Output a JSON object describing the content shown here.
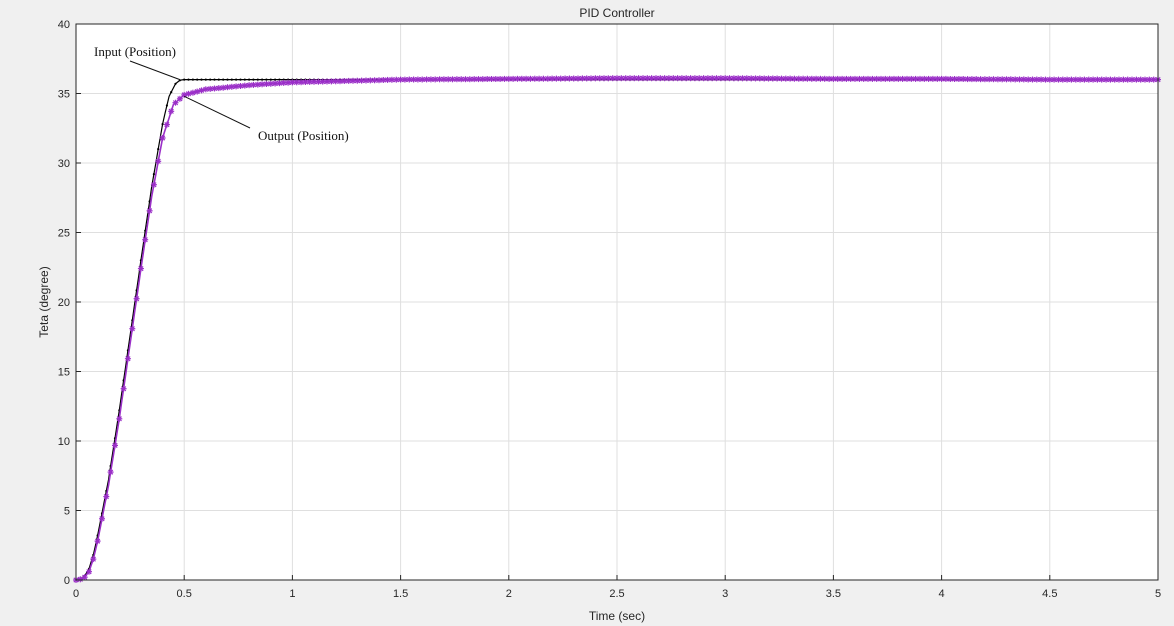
{
  "chart_data": {
    "type": "line",
    "title": "PID  Controller",
    "xlabel": "Time (sec)",
    "ylabel": "Teta (degree)",
    "xlim": [
      0,
      5
    ],
    "ylim": [
      0,
      40
    ],
    "xticks": [
      0,
      0.5,
      1,
      1.5,
      2,
      2.5,
      3,
      3.5,
      4,
      4.5,
      5
    ],
    "xtick_labels": [
      "0",
      "0.5",
      "1",
      "1.5",
      "2",
      "2.5",
      "3",
      "3.5",
      "4",
      "4.5",
      "5"
    ],
    "yticks": [
      0,
      5,
      10,
      15,
      20,
      25,
      30,
      35,
      40
    ],
    "ytick_labels": [
      "0",
      "5",
      "10",
      "15",
      "20",
      "25",
      "30",
      "35",
      "40"
    ],
    "grid": true,
    "annotations": [
      {
        "text": "Input (Position)",
        "points_to": [
          0.48,
          36.0
        ]
      },
      {
        "text": "Output (Position)",
        "points_to": [
          0.5,
          34.8
        ]
      }
    ],
    "series": [
      {
        "name": "Input (Position)",
        "color": "#000000",
        "marker": "dot",
        "x": [
          0,
          0.02,
          0.04,
          0.06,
          0.08,
          0.1,
          0.12,
          0.15,
          0.2,
          0.25,
          0.3,
          0.35,
          0.4,
          0.43,
          0.46,
          0.48,
          0.5,
          0.55,
          0.6,
          0.8,
          1.0,
          1.5,
          2.0,
          2.5,
          3.0,
          3.5,
          4.0,
          4.5,
          5.0
        ],
        "values": [
          0,
          0.1,
          0.3,
          0.8,
          1.8,
          3.2,
          4.8,
          7.2,
          12.2,
          17.6,
          23.0,
          28.3,
          32.8,
          34.8,
          35.7,
          35.95,
          36.0,
          36.0,
          36.0,
          36.0,
          36.0,
          36.0,
          36.0,
          36.0,
          36.0,
          36.0,
          36.0,
          36.0,
          36.0
        ]
      },
      {
        "name": "Output (Position)",
        "color": "#9b30c8",
        "marker": "star",
        "x": [
          0,
          0.02,
          0.04,
          0.06,
          0.08,
          0.1,
          0.12,
          0.15,
          0.2,
          0.25,
          0.3,
          0.35,
          0.4,
          0.45,
          0.5,
          0.55,
          0.6,
          0.8,
          1.0,
          1.5,
          2.0,
          2.5,
          3.0,
          3.5,
          4.0,
          4.5,
          5.0
        ],
        "values": [
          0,
          0.05,
          0.2,
          0.6,
          1.5,
          2.8,
          4.4,
          6.8,
          11.6,
          17.0,
          22.4,
          27.6,
          31.8,
          34.2,
          34.9,
          35.1,
          35.3,
          35.6,
          35.8,
          36.0,
          36.05,
          36.1,
          36.1,
          36.05,
          36.05,
          36.0,
          36.0
        ]
      }
    ]
  }
}
